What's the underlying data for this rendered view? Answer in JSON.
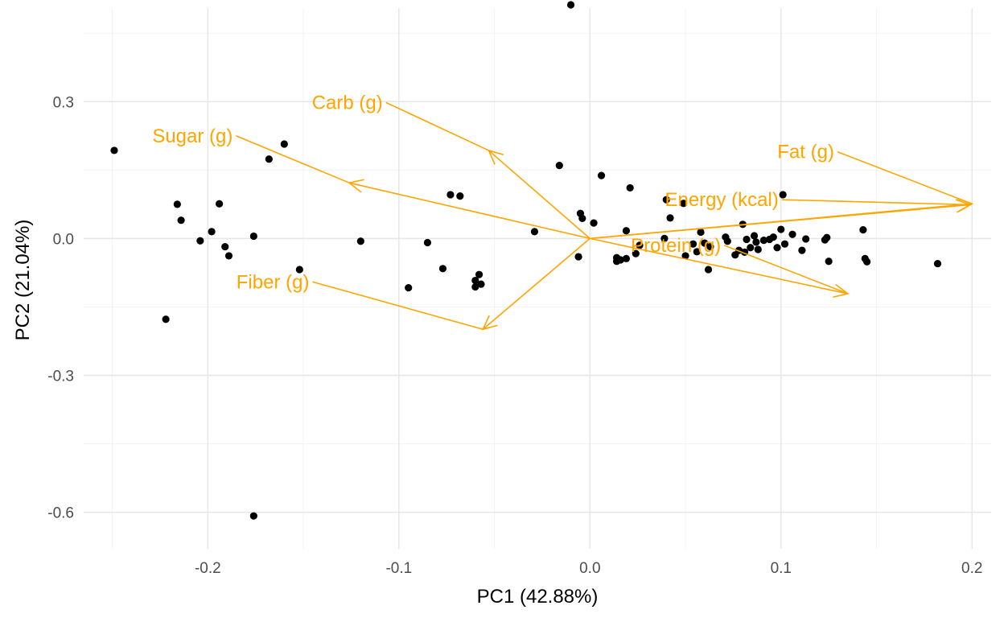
{
  "chart_data": {
    "type": "scatter",
    "xlabel": "PC1 (42.88%)",
    "ylabel": "PC2 (21.04%)",
    "xlim": [
      -0.265,
      0.21
    ],
    "ylim": [
      -0.68,
      0.505
    ],
    "x_ticks": [
      -0.2,
      -0.1,
      0.0,
      0.1,
      0.2
    ],
    "x_tick_labels": [
      "-0.2",
      "-0.1",
      "0.0",
      "0.1",
      "0.2"
    ],
    "y_ticks": [
      -0.6,
      -0.3,
      0.0,
      0.3
    ],
    "y_tick_labels": [
      "-0.6",
      "-0.3",
      "0.0",
      "0.3"
    ],
    "grid": true,
    "point_color": "#000000",
    "arrow_color": "#ffa500",
    "points": [
      {
        "x": -0.249,
        "y": 0.193
      },
      {
        "x": -0.16,
        "y": 0.207
      },
      {
        "x": -0.168,
        "y": 0.174
      },
      {
        "x": -0.216,
        "y": 0.075
      },
      {
        "x": -0.214,
        "y": 0.04
      },
      {
        "x": -0.194,
        "y": 0.076
      },
      {
        "x": -0.198,
        "y": 0.015
      },
      {
        "x": -0.204,
        "y": -0.005
      },
      {
        "x": -0.191,
        "y": -0.018
      },
      {
        "x": -0.189,
        "y": -0.038
      },
      {
        "x": -0.176,
        "y": 0.005
      },
      {
        "x": -0.152,
        "y": -0.068
      },
      {
        "x": -0.222,
        "y": -0.177
      },
      {
        "x": -0.176,
        "y": -0.608
      },
      {
        "x": -0.12,
        "y": -0.006
      },
      {
        "x": -0.095,
        "y": -0.108
      },
      {
        "x": -0.085,
        "y": -0.009
      },
      {
        "x": -0.073,
        "y": 0.096
      },
      {
        "x": -0.068,
        "y": 0.093
      },
      {
        "x": -0.077,
        "y": -0.066
      },
      {
        "x": -0.058,
        "y": -0.079
      },
      {
        "x": -0.06,
        "y": -0.092
      },
      {
        "x": -0.057,
        "y": -0.1
      },
      {
        "x": -0.06,
        "y": -0.106
      },
      {
        "x": -0.029,
        "y": 0.015
      },
      {
        "x": -0.016,
        "y": 0.16
      },
      {
        "x": -0.01,
        "y": 0.512
      },
      {
        "x": -0.005,
        "y": 0.055
      },
      {
        "x": -0.004,
        "y": 0.044
      },
      {
        "x": 0.002,
        "y": 0.034
      },
      {
        "x": -0.006,
        "y": -0.04
      },
      {
        "x": 0.006,
        "y": 0.138
      },
      {
        "x": 0.021,
        "y": 0.111
      },
      {
        "x": 0.019,
        "y": 0.017
      },
      {
        "x": 0.014,
        "y": -0.042
      },
      {
        "x": 0.016,
        "y": -0.047
      },
      {
        "x": 0.014,
        "y": -0.05
      },
      {
        "x": 0.019,
        "y": -0.044
      },
      {
        "x": 0.024,
        "y": -0.033
      },
      {
        "x": 0.026,
        "y": -0.015
      },
      {
        "x": 0.039,
        "y": 0.0
      },
      {
        "x": 0.04,
        "y": 0.085
      },
      {
        "x": 0.042,
        "y": 0.045
      },
      {
        "x": 0.049,
        "y": 0.077
      },
      {
        "x": 0.05,
        "y": -0.038
      },
      {
        "x": 0.054,
        "y": -0.012
      },
      {
        "x": 0.056,
        "y": -0.029
      },
      {
        "x": 0.058,
        "y": 0.014
      },
      {
        "x": 0.06,
        "y": -0.01
      },
      {
        "x": 0.062,
        "y": -0.068
      },
      {
        "x": 0.063,
        "y": -0.018
      },
      {
        "x": 0.071,
        "y": 0.003
      },
      {
        "x": 0.072,
        "y": -0.006
      },
      {
        "x": 0.076,
        "y": -0.036
      },
      {
        "x": 0.078,
        "y": -0.026
      },
      {
        "x": 0.08,
        "y": 0.031
      },
      {
        "x": 0.081,
        "y": -0.03
      },
      {
        "x": 0.082,
        "y": -0.002
      },
      {
        "x": 0.084,
        "y": -0.02
      },
      {
        "x": 0.086,
        "y": 0.006
      },
      {
        "x": 0.087,
        "y": -0.008
      },
      {
        "x": 0.088,
        "y": -0.024
      },
      {
        "x": 0.091,
        "y": -0.004
      },
      {
        "x": 0.094,
        "y": -0.002
      },
      {
        "x": 0.096,
        "y": 0.003
      },
      {
        "x": 0.098,
        "y": -0.02
      },
      {
        "x": 0.1,
        "y": 0.02
      },
      {
        "x": 0.101,
        "y": 0.096
      },
      {
        "x": 0.102,
        "y": -0.012
      },
      {
        "x": 0.106,
        "y": 0.009
      },
      {
        "x": 0.111,
        "y": -0.026
      },
      {
        "x": 0.113,
        "y": -0.001
      },
      {
        "x": 0.123,
        "y": -0.003
      },
      {
        "x": 0.124,
        "y": 0.002
      },
      {
        "x": 0.125,
        "y": -0.05
      },
      {
        "x": 0.143,
        "y": 0.019
      },
      {
        "x": 0.144,
        "y": -0.044
      },
      {
        "x": 0.145,
        "y": -0.051
      },
      {
        "x": 0.182,
        "y": -0.055
      }
    ],
    "loadings": [
      {
        "name": "Carb (g)",
        "x": -0.053,
        "y": 0.193
      },
      {
        "name": "Sugar (g)",
        "x": -0.126,
        "y": 0.122
      },
      {
        "name": "Fat (g)",
        "x": 0.2,
        "y": 0.076
      },
      {
        "name": "Energy (kcal)",
        "x": 0.199,
        "y": 0.074
      },
      {
        "name": "Protein (g)",
        "x": 0.135,
        "y": -0.121
      },
      {
        "name": "Fiber (g)",
        "x": -0.056,
        "y": -0.199
      }
    ],
    "loading_label_anchors": [
      {
        "name": "Carb (g)",
        "x": -0.127,
        "y": 0.298
      },
      {
        "name": "Sugar (g)",
        "x": -0.208,
        "y": 0.225
      },
      {
        "name": "Fat (g)",
        "x": 0.113,
        "y": 0.19
      },
      {
        "name": "Energy (kcal)",
        "x": 0.069,
        "y": 0.085
      },
      {
        "name": "Protein (g)",
        "x": 0.045,
        "y": -0.015
      },
      {
        "name": "Fiber (g)",
        "x": -0.166,
        "y": -0.095
      }
    ]
  }
}
